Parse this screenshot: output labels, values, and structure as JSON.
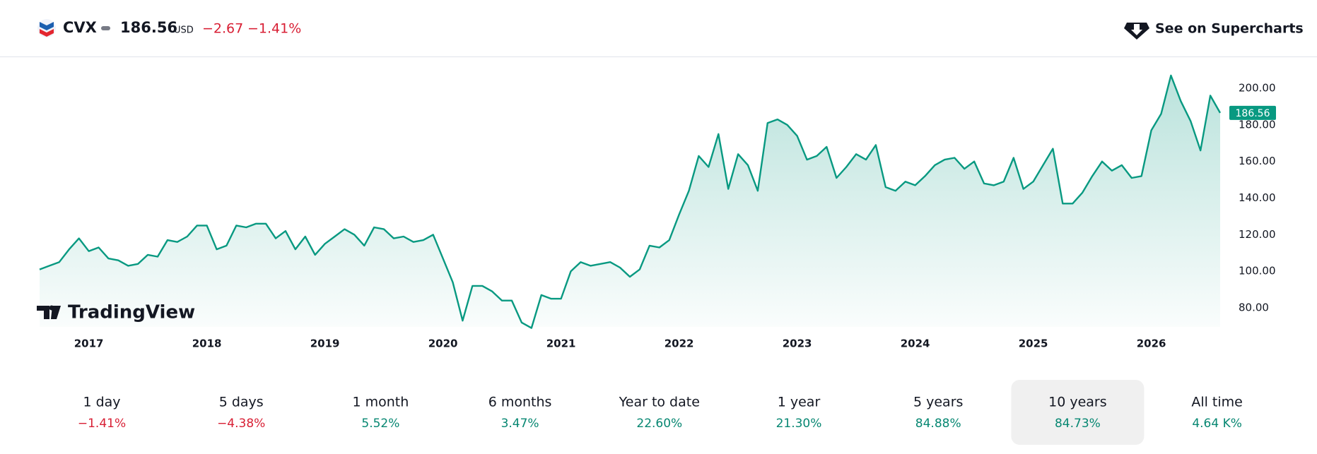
{
  "header": {
    "symbol": "CVX",
    "price": "186.56",
    "currency": "USD",
    "change": "−2.67",
    "change_percent": "−1.41%",
    "link": "See on Supercharts"
  },
  "chart_data": {
    "type": "area",
    "watermark": "TradingView",
    "color": "#089981",
    "categories": [
      null,
      null,
      null,
      null,
      null,
      "2017",
      null,
      null,
      null,
      null,
      null,
      null,
      null,
      null,
      null,
      null,
      null,
      "2018",
      null,
      null,
      null,
      null,
      null,
      null,
      null,
      null,
      null,
      null,
      null,
      "2019",
      null,
      null,
      null,
      null,
      null,
      null,
      null,
      null,
      null,
      null,
      null,
      "2020",
      null,
      null,
      null,
      null,
      null,
      null,
      null,
      null,
      null,
      null,
      null,
      "2021",
      null,
      null,
      null,
      null,
      null,
      null,
      null,
      null,
      null,
      null,
      null,
      "2022",
      null,
      null,
      null,
      null,
      null,
      null,
      null,
      null,
      null,
      null,
      null,
      "2023",
      null,
      null,
      null,
      null,
      null,
      null,
      null,
      null,
      null,
      null,
      null,
      "2024",
      null,
      null,
      null,
      null,
      null,
      null,
      null,
      null,
      null,
      null,
      null,
      "2025",
      null,
      null,
      null,
      null,
      null,
      null,
      null,
      null,
      null,
      null,
      null,
      "2026",
      null,
      null,
      null,
      null,
      null,
      null,
      null
    ],
    "values": [
      101,
      103,
      105,
      112,
      118,
      111,
      113,
      107,
      106,
      103,
      104,
      109,
      108,
      117,
      116,
      119,
      125,
      125,
      112,
      114,
      125,
      124,
      126,
      126,
      118,
      122,
      112,
      119,
      109,
      115,
      119,
      123,
      120,
      114,
      124,
      123,
      118,
      119,
      116,
      117,
      120,
      107,
      94,
      73,
      92,
      92,
      89,
      84,
      84,
      72,
      69,
      87,
      85,
      85,
      100,
      105,
      103,
      104,
      105,
      102,
      97,
      101,
      114,
      113,
      117,
      131,
      144,
      163,
      157,
      175,
      145,
      164,
      158,
      144,
      181,
      183,
      180,
      174,
      161,
      163,
      168,
      151,
      157,
      164,
      161,
      169,
      146,
      144,
      149,
      147,
      152,
      158,
      161,
      162,
      156,
      160,
      148,
      147,
      149,
      162,
      145,
      149,
      158,
      167,
      137,
      137,
      143,
      152,
      160,
      155,
      158,
      151,
      152,
      177,
      186,
      207,
      193,
      182,
      166,
      196,
      186.56
    ],
    "ylim": [
      69.6,
      213.9
    ],
    "yticks": [
      {
        "value": 80,
        "label": "80.00"
      },
      {
        "value": 100,
        "label": "100.00"
      },
      {
        "value": 120,
        "label": "120.00"
      },
      {
        "value": 140,
        "label": "140.00"
      },
      {
        "value": 160,
        "label": "160.00"
      },
      {
        "value": 180,
        "label": "180.00"
      },
      {
        "value": 200,
        "label": "200.00"
      }
    ]
  },
  "periods": [
    {
      "label": "1 day",
      "value": "−1.41%"
    },
    {
      "label": "5 days",
      "value": "−4.38%"
    },
    {
      "label": "1 month",
      "value": "5.52%"
    },
    {
      "label": "6 months",
      "value": "3.47%"
    },
    {
      "label": "Year to date",
      "value": "22.60%"
    },
    {
      "label": "1 year",
      "value": "21.30%"
    },
    {
      "label": "5 years",
      "value": "84.88%"
    },
    {
      "label": "10 years",
      "value": "84.73%"
    },
    {
      "label": "All time",
      "value": "4.64 K%"
    }
  ],
  "selected_period": 7
}
